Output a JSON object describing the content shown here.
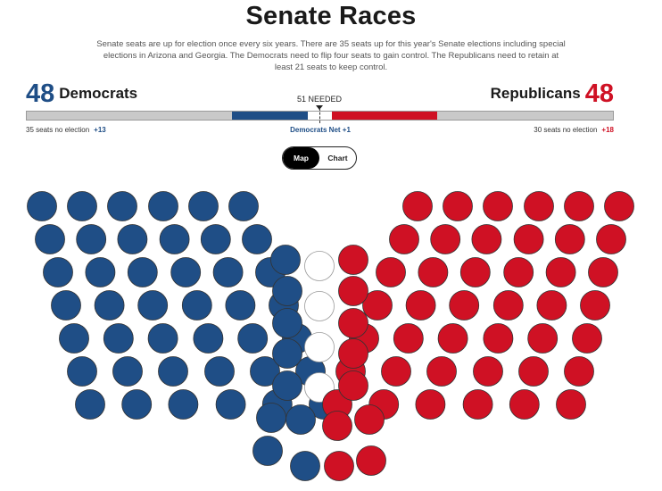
{
  "header": {
    "title": "Senate Races",
    "description": "Senate seats are up for election once every six years. There are 35 seats up for this year's Senate elections including special elections in Arizona and Georgia. The Democrats need to flip four seats to gain control. The Republicans need to retain at least 21 seats to keep control."
  },
  "tally": {
    "dem_count": "48",
    "dem_label": "Democrats",
    "rep_count": "48",
    "rep_label": "Republicans",
    "needed_label": "51 NEEDED",
    "dem_no_election": "35 seats no election",
    "dem_gain": "+13",
    "net_label": "Democrats Net +1",
    "rep_no_election": "30 seats no election",
    "rep_gain": "+18"
  },
  "view_toggle": {
    "options": [
      "Map",
      "Chart"
    ],
    "selected": "Map"
  },
  "colors": {
    "democrat": "#1f4e86",
    "republican": "#cf1124",
    "undecided": "#ffffff",
    "no_election": "#c9c9c9"
  },
  "chart_data": {
    "type": "seat-chart",
    "total_seats": 100,
    "majority": 51,
    "series": [
      {
        "name": "Democrats",
        "values": [
          48
        ],
        "no_election": 35,
        "up_for_election_won": 13
      },
      {
        "name": "Undecided",
        "values": [
          4
        ]
      },
      {
        "name": "Republicans",
        "values": [
          48
        ],
        "no_election": 30,
        "up_for_election_won": 18
      }
    ]
  }
}
